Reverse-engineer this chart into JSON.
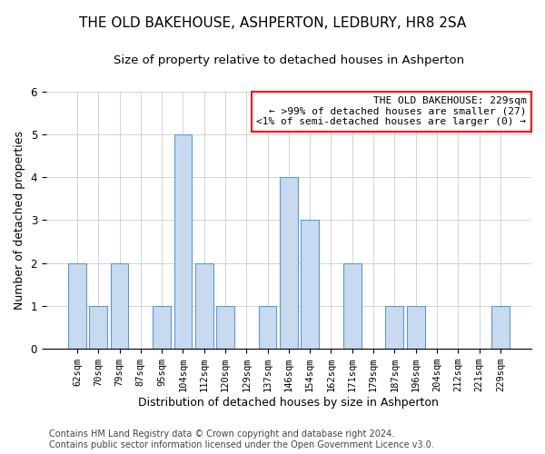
{
  "title": "THE OLD BAKEHOUSE, ASHPERTON, LEDBURY, HR8 2SA",
  "subtitle": "Size of property relative to detached houses in Ashperton",
  "xlabel": "Distribution of detached houses by size in Ashperton",
  "ylabel": "Number of detached properties",
  "categories": [
    "62sqm",
    "70sqm",
    "79sqm",
    "87sqm",
    "95sqm",
    "104sqm",
    "112sqm",
    "120sqm",
    "129sqm",
    "137sqm",
    "146sqm",
    "154sqm",
    "162sqm",
    "171sqm",
    "179sqm",
    "187sqm",
    "196sqm",
    "204sqm",
    "212sqm",
    "221sqm",
    "229sqm"
  ],
  "values": [
    2,
    1,
    2,
    0,
    1,
    5,
    2,
    1,
    0,
    1,
    4,
    3,
    0,
    2,
    0,
    1,
    1,
    0,
    0,
    0,
    1
  ],
  "bar_color": "#c8daf0",
  "bar_edge_color": "#5b9bd5",
  "ylim": [
    0,
    6
  ],
  "yticks": [
    0,
    1,
    2,
    3,
    4,
    5,
    6
  ],
  "annotation_line1": "THE OLD BAKEHOUSE: 229sqm",
  "annotation_line2": "← >99% of detached houses are smaller (27)",
  "annotation_line3": "<1% of semi-detached houses are larger (0) →",
  "annotation_box_color": "#ff0000",
  "footer_line1": "Contains HM Land Registry data © Crown copyright and database right 2024.",
  "footer_line2": "Contains public sector information licensed under the Open Government Licence v3.0.",
  "title_fontsize": 11,
  "subtitle_fontsize": 9.5,
  "axis_label_fontsize": 9,
  "tick_fontsize": 7.5,
  "annotation_fontsize": 8,
  "footer_fontsize": 7
}
